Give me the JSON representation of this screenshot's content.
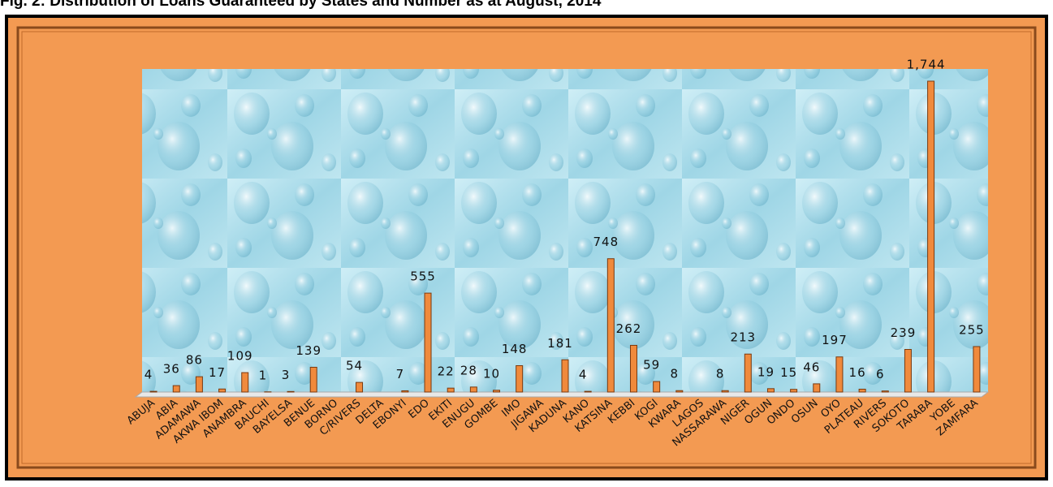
{
  "chart_data": {
    "type": "bar",
    "title": "Fig. 2: Distribution of Loans Guaranteed by States and Number as at August, 2014",
    "categories": [
      "ABUJA",
      "ABIA",
      "ADAMAWA",
      "AKWA IBOM",
      "ANAMBRA",
      "BAUCHI",
      "BAYELSA",
      "BENUE",
      "BORNO",
      "C/RIVERS",
      "DELTA",
      "EBONYI",
      "EDO",
      "EKITI",
      "ENUGU",
      "GOMBE",
      "IMO",
      "JIGAWA",
      "KADUNA",
      "KANO",
      "KATSINA",
      "KEBBI",
      "KOGI",
      "KWARA",
      "LAGOS",
      "NASSARAWA",
      "NIGER",
      "OGUN",
      "ONDO",
      "OSUN",
      "OYO",
      "PLATEAU",
      "RIVERS",
      "SOKOTO",
      "TARABA",
      "YOBE",
      "ZAMFARA"
    ],
    "values": [
      4,
      36,
      86,
      17,
      109,
      1,
      3,
      139,
      null,
      54,
      null,
      7,
      555,
      22,
      28,
      10,
      148,
      null,
      181,
      4,
      748,
      262,
      59,
      8,
      null,
      8,
      213,
      19,
      15,
      46,
      197,
      16,
      6,
      239,
      1744,
      null,
      255
    ],
    "value_labels": [
      "4",
      "36",
      "86",
      "17",
      "109",
      "1",
      "3",
      "139",
      null,
      "54",
      null,
      "7",
      "555",
      "22",
      "28",
      "10",
      "148",
      null,
      "181",
      "4",
      "748",
      "262",
      "59",
      "8",
      null,
      "8",
      "213",
      "19",
      "15",
      "46",
      "197",
      "16",
      "6",
      "239",
      "1,744",
      null,
      "255"
    ],
    "color": "#f08a3c"
  }
}
